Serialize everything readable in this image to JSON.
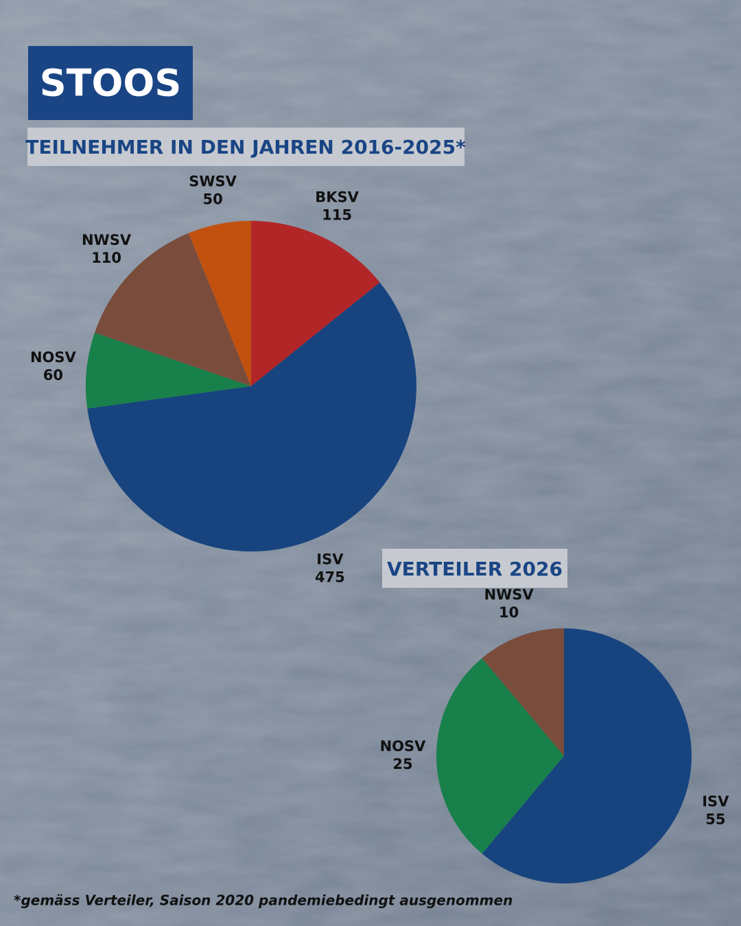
{
  "header": {
    "title": "STOOS"
  },
  "footnote": "*gemäss Verteiler, Saison 2020 pandemiebedingt ausgenommen",
  "chart_data": [
    {
      "type": "pie",
      "title": "TEILNEHMER IN DEN JAHREN 2016-2025*",
      "categories": [
        "BKSV",
        "ISV",
        "NOSV",
        "NWSV",
        "SWSV"
      ],
      "values": [
        115,
        475,
        60,
        110,
        50
      ],
      "colors": [
        "#b22628",
        "#17447f",
        "#18804a",
        "#7a4c3c",
        "#c2510f"
      ]
    },
    {
      "type": "pie",
      "title": "VERTEILER 2026",
      "categories": [
        "ISV",
        "NOSV",
        "NWSV"
      ],
      "values": [
        55,
        25,
        10
      ],
      "colors": [
        "#17447f",
        "#18804a",
        "#7a4c3c"
      ]
    }
  ]
}
